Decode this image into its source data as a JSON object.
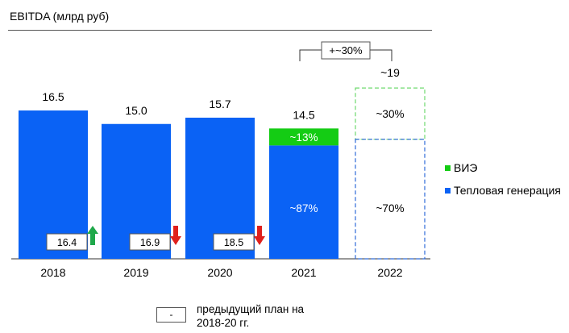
{
  "title": "EBITDA (млрд руб)",
  "colors": {
    "blue": "#0a62f5",
    "green": "#14cc14",
    "green_arrow": "#1fa84a",
    "red_arrow": "#e0201c",
    "dashed_green": "#6dd86d",
    "dashed_blue": "#2e6ad8"
  },
  "growth_label": "+~30%",
  "legend": [
    {
      "label": "ВИЭ",
      "color": "#14cc14"
    },
    {
      "label": "Тепловая генерация",
      "color": "#0a62f5"
    }
  ],
  "note": {
    "box_text": "-",
    "text": "предыдущий план на 2018-20 гг."
  },
  "chart_data": {
    "type": "bar",
    "categories": [
      "2018",
      "2019",
      "2020",
      "2021",
      "2022"
    ],
    "totals": [
      "16.5",
      "15.0",
      "15.7",
      "14.5",
      "~19"
    ],
    "values": [
      16.5,
      15.0,
      15.7,
      14.5,
      19
    ],
    "series": [
      {
        "name": "Тепловая генерация",
        "share_labels": [
          "",
          "",
          "",
          "~87%",
          "~70%"
        ]
      },
      {
        "name": "ВИЭ",
        "share_labels": [
          "",
          "",
          "",
          "~13%",
          "~30%"
        ]
      }
    ],
    "split_2021_thermal_share": 0.87,
    "split_2022_thermal_share": 0.7,
    "forecast_category": "2022",
    "previous_plan": [
      {
        "category": "2018",
        "value": "16.4",
        "direction": "up"
      },
      {
        "category": "2019",
        "value": "16.9",
        "direction": "down"
      },
      {
        "category": "2020",
        "value": "18.5",
        "direction": "down"
      }
    ]
  }
}
